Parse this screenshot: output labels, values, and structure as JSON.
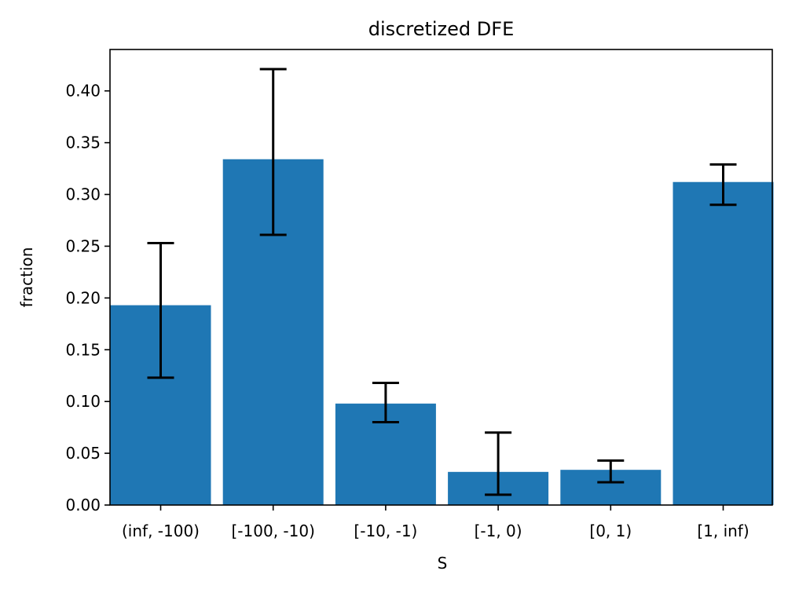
{
  "chart_data": {
    "type": "bar",
    "title": "discretized DFE",
    "xlabel": "S",
    "ylabel": "fraction",
    "categories": [
      "(inf, -100)",
      "[-100, -10)",
      "[-10, -1)",
      "[-1, 0)",
      "[0, 1)",
      "[1, inf)"
    ],
    "values": [
      0.193,
      0.334,
      0.098,
      0.032,
      0.034,
      0.312
    ],
    "error_low": [
      0.123,
      0.261,
      0.08,
      0.01,
      0.022,
      0.29
    ],
    "error_high": [
      0.253,
      0.421,
      0.118,
      0.07,
      0.043,
      0.329
    ],
    "ylim": [
      0,
      0.44
    ],
    "yticks": [
      0.0,
      0.05,
      0.1,
      0.15,
      0.2,
      0.25,
      0.3,
      0.35,
      0.4
    ],
    "ytick_labels": [
      "0.00",
      "0.05",
      "0.10",
      "0.15",
      "0.20",
      "0.25",
      "0.30",
      "0.35",
      "0.40"
    ],
    "grid": false,
    "colors": {
      "bar": "#1f77b4",
      "errorbar": "#000000",
      "axes": "#000000",
      "background": "#ffffff"
    }
  }
}
